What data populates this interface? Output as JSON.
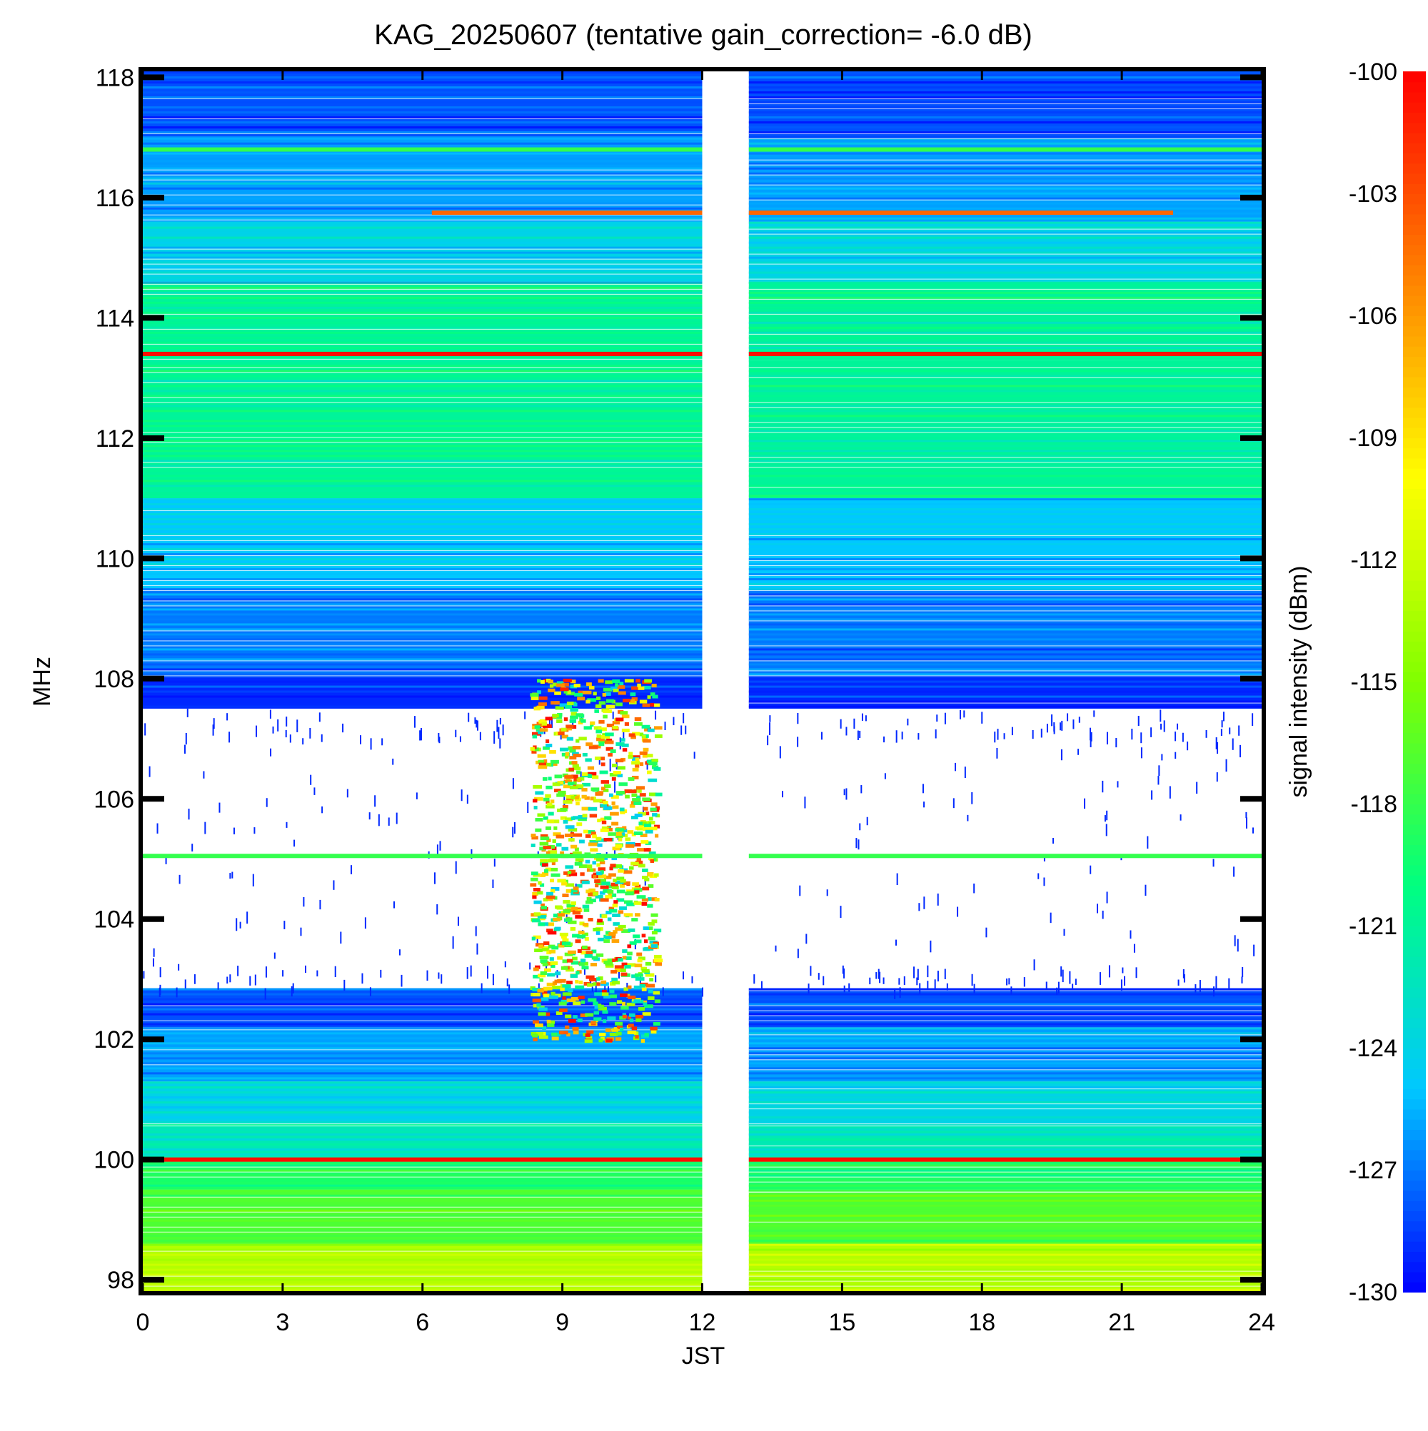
{
  "chart_data": {
    "type": "heatmap",
    "title": "KAG_20250607 (tentative gain_correction= -6.0 dB)",
    "xlabel": "JST",
    "ylabel": "MHz",
    "colorbar_label": "signal intensity (dBm)",
    "xlim": [
      0,
      24
    ],
    "ylim": [
      97.8,
      118.1
    ],
    "x_ticks": [
      "0",
      "3",
      "6",
      "9",
      "12",
      "15",
      "18",
      "21",
      "24"
    ],
    "y_ticks": [
      "98",
      "100",
      "102",
      "104",
      "106",
      "108",
      "110",
      "112",
      "114",
      "116",
      "118"
    ],
    "colorbar_range": [
      -130,
      -100
    ],
    "colorbar_ticks": [
      "-100",
      "-103",
      "-106",
      "-109",
      "-112",
      "-115",
      "-118",
      "-121",
      "-124",
      "-127",
      "-130"
    ],
    "colormap": [
      "#0000ff",
      "#00c8ff",
      "#00ff80",
      "#80ff00",
      "#ffff00",
      "#ff8000",
      "#ff0000"
    ],
    "data_gap_jst": [
      12.0,
      13.0
    ],
    "sporadic_burst_jst": [
      8.0,
      11.0
    ],
    "sporadic_burst_mhz": [
      102.0,
      108.0
    ],
    "background_bands": [
      {
        "mhz": [
          97.8,
          98.6
        ],
        "dbm": -113
      },
      {
        "mhz": [
          98.6,
          99.5
        ],
        "dbm": -117
      },
      {
        "mhz": [
          99.5,
          100.0
        ],
        "dbm": -119
      },
      {
        "mhz": [
          100.0,
          100.6
        ],
        "dbm": -122
      },
      {
        "mhz": [
          100.6,
          101.3
        ],
        "dbm": -124
      },
      {
        "mhz": [
          101.3,
          102.2
        ],
        "dbm": -126
      },
      {
        "mhz": [
          102.2,
          102.85
        ],
        "dbm": -128
      },
      {
        "mhz": [
          102.85,
          107.5
        ],
        "dbm": null
      },
      {
        "mhz": [
          107.5,
          108.05
        ],
        "dbm": -129
      },
      {
        "mhz": [
          108.05,
          109.5
        ],
        "dbm": -127
      },
      {
        "mhz": [
          109.5,
          111.0
        ],
        "dbm": -125
      },
      {
        "mhz": [
          111.0,
          113.3
        ],
        "dbm": -121
      },
      {
        "mhz": [
          113.3,
          114.6
        ],
        "dbm": -121
      },
      {
        "mhz": [
          114.6,
          115.6
        ],
        "dbm": -124
      },
      {
        "mhz": [
          115.6,
          117.0
        ],
        "dbm": -126
      },
      {
        "mhz": [
          117.0,
          118.1
        ],
        "dbm": -128
      }
    ],
    "stations": [
      {
        "mhz": 100.0,
        "dbm": -100.5,
        "jst": [
          0,
          24
        ]
      },
      {
        "mhz": 113.4,
        "dbm": -100.5,
        "jst": [
          0,
          24
        ]
      },
      {
        "mhz": 116.8,
        "dbm": -118,
        "jst": [
          0,
          24
        ]
      },
      {
        "mhz": 115.75,
        "dbm": -104,
        "jst": [
          6.2,
          22.1
        ]
      },
      {
        "mhz": 105.05,
        "dbm": -118,
        "jst": [
          0,
          24
        ]
      }
    ]
  }
}
